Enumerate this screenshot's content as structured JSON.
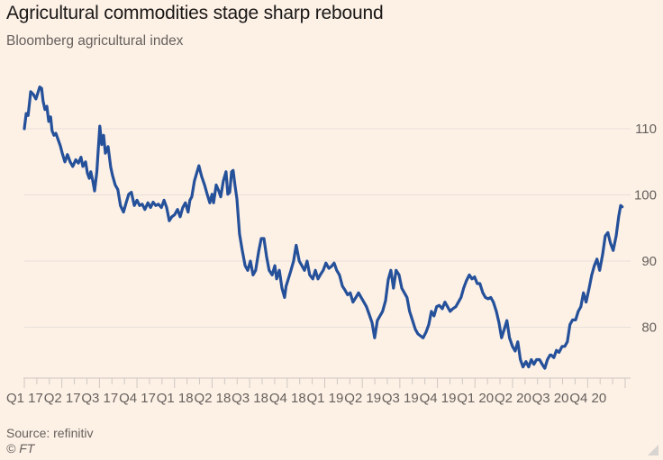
{
  "header": {
    "title": "Agricultural commodities stage sharp rebound",
    "subtitle": "Bloomberg agricultural index"
  },
  "footer": {
    "source": "Source: refinitiv",
    "copyright": "© FT"
  },
  "colors": {
    "background": "#fdf1e6",
    "line": "#25509a",
    "grid": "#e9e0d8",
    "axis": "#cfc8c2",
    "text": "#66605c",
    "title": "#1a1817"
  },
  "chart_data": {
    "type": "line",
    "title": "Agricultural commodities stage sharp rebound",
    "subtitle": "Bloomberg agricultural index",
    "xlabel": "",
    "ylabel": "",
    "x_unit": "quarters since start of Q1 2017",
    "x_range": [
      0,
      16
    ],
    "ylim": [
      73,
      119
    ],
    "yticks": [
      80,
      90,
      100,
      110
    ],
    "ytick_position": "right",
    "grid": true,
    "legend": "none",
    "categories": [
      "Q1 17",
      "Q2 17",
      "Q3 17",
      "Q4 17",
      "Q1 18",
      "Q2 18",
      "Q3 18",
      "Q4 18",
      "Q1 19",
      "Q2 19",
      "Q3 19",
      "Q4 19",
      "Q1 20",
      "Q2 20",
      "Q3 20",
      "Q4 20"
    ],
    "series": [
      {
        "name": "Bloomberg agricultural index",
        "x": [
          0.0,
          0.05,
          0.1,
          0.17,
          0.24,
          0.31,
          0.36,
          0.41,
          0.46,
          0.5,
          0.55,
          0.6,
          0.65,
          0.7,
          0.74,
          0.79,
          0.84,
          0.96,
          1.01,
          1.08,
          1.15,
          1.22,
          1.29,
          1.37,
          1.44,
          1.51,
          1.56,
          1.63,
          1.68,
          1.73,
          1.77,
          1.82,
          1.87,
          1.93,
          1.97,
          2.01,
          2.06,
          2.11,
          2.16,
          2.23,
          2.3,
          2.35,
          2.42,
          2.49,
          2.56,
          2.64,
          2.71,
          2.78,
          2.85,
          2.93,
          3.0,
          3.07,
          3.14,
          3.21,
          3.29,
          3.36,
          3.43,
          3.5,
          3.57,
          3.65,
          3.72,
          3.79,
          3.86,
          3.93,
          4.0,
          4.08,
          4.15,
          4.22,
          4.29,
          4.36,
          4.41,
          4.46,
          4.53,
          4.6,
          4.65,
          4.72,
          4.8,
          4.87,
          4.94,
          5.0,
          5.04,
          5.11,
          5.18,
          5.23,
          5.3,
          5.37,
          5.42,
          5.47,
          5.52,
          5.56,
          5.61,
          5.66,
          5.73,
          5.8,
          5.88,
          5.95,
          6.02,
          6.09,
          6.16,
          6.24,
          6.31,
          6.38,
          6.45,
          6.52,
          6.6,
          6.67,
          6.72,
          6.79,
          6.86,
          6.93,
          6.97,
          7.03,
          7.1,
          7.17,
          7.24,
          7.32,
          7.39,
          7.46,
          7.53,
          7.6,
          7.68,
          7.75,
          7.82,
          7.89,
          7.96,
          8.03,
          8.11,
          8.18,
          8.25,
          8.32,
          8.39,
          8.47,
          8.54,
          8.61,
          8.68,
          8.75,
          8.83,
          8.9,
          8.97,
          9.04,
          9.11,
          9.18,
          9.26,
          9.33,
          9.4,
          9.47,
          9.54,
          9.62,
          9.69,
          9.76,
          9.83,
          9.9,
          9.98,
          10.05,
          10.12,
          10.19,
          10.26,
          10.34,
          10.41,
          10.48,
          10.55,
          10.62,
          10.7,
          10.77,
          10.84,
          10.91,
          10.98,
          11.05,
          11.13,
          11.2,
          11.27,
          11.34,
          11.41,
          11.49,
          11.56,
          11.63,
          11.7,
          11.77,
          11.85,
          11.92,
          11.99,
          12.06,
          12.13,
          12.21,
          12.28,
          12.35,
          12.42,
          12.49,
          12.57,
          12.64,
          12.71,
          12.78,
          12.85,
          12.92,
          13.0,
          13.07,
          13.14,
          13.21,
          13.28,
          13.36,
          13.43,
          13.5,
          13.57,
          13.64,
          13.72,
          13.79,
          13.86,
          13.93,
          14.0,
          14.03,
          14.1,
          14.17,
          14.24,
          14.32,
          14.39,
          14.46,
          14.53,
          14.6,
          14.68,
          14.75,
          14.82,
          14.89,
          14.96,
          15.04,
          15.11,
          15.18,
          15.25,
          15.32,
          15.4,
          15.47,
          15.54,
          15.61,
          15.68,
          15.76,
          15.83,
          15.88,
          15.92
        ],
        "values": [
          110.0,
          112.3,
          112.0,
          115.6,
          115.2,
          114.5,
          115.4,
          116.3,
          116.1,
          114.2,
          112.9,
          113.4,
          111.1,
          111.8,
          109.7,
          109.0,
          109.3,
          107.4,
          106.3,
          105.0,
          106.1,
          105.0,
          104.3,
          105.3,
          104.8,
          105.7,
          104.3,
          105.0,
          103.3,
          102.5,
          103.5,
          102.2,
          100.6,
          103.5,
          106.9,
          110.4,
          107.6,
          109.0,
          106.3,
          107.3,
          104.2,
          102.9,
          101.5,
          100.8,
          98.4,
          97.4,
          98.8,
          100.1,
          100.4,
          98.4,
          99.2,
          98.4,
          98.6,
          97.8,
          98.8,
          98.1,
          98.9,
          98.4,
          98.6,
          98.1,
          99.2,
          98.1,
          96.1,
          96.7,
          97.0,
          97.8,
          96.7,
          98.1,
          98.8,
          97.4,
          99.2,
          99.7,
          102.1,
          103.5,
          104.4,
          102.8,
          101.5,
          100.1,
          98.8,
          100.1,
          98.8,
          101.5,
          100.6,
          99.7,
          102.1,
          103.5,
          100.1,
          100.4,
          103.5,
          103.7,
          101.4,
          99.4,
          94.1,
          91.7,
          89.3,
          88.6,
          90.0,
          87.9,
          88.6,
          91.4,
          93.4,
          93.4,
          90.7,
          88.6,
          87.9,
          89.3,
          87.3,
          88.6,
          85.9,
          84.5,
          86.2,
          87.3,
          88.6,
          90.0,
          92.4,
          90.0,
          89.3,
          88.6,
          90.0,
          87.9,
          87.3,
          88.6,
          87.3,
          88.0,
          88.6,
          89.7,
          88.9,
          89.2,
          89.7,
          88.6,
          87.9,
          86.2,
          85.6,
          84.9,
          85.2,
          83.8,
          84.5,
          85.2,
          84.5,
          83.8,
          83.1,
          82.0,
          80.7,
          78.4,
          81.0,
          81.7,
          82.4,
          84.0,
          87.2,
          88.6,
          85.9,
          88.6,
          87.9,
          85.9,
          85.2,
          84.5,
          82.4,
          81.0,
          79.7,
          79.0,
          78.7,
          78.4,
          79.3,
          80.4,
          82.4,
          81.7,
          83.1,
          83.3,
          82.8,
          83.8,
          83.1,
          82.4,
          82.8,
          83.1,
          83.8,
          84.5,
          85.9,
          87.0,
          87.9,
          87.3,
          87.6,
          86.6,
          86.6,
          85.2,
          84.5,
          84.3,
          84.5,
          83.8,
          82.4,
          80.7,
          78.4,
          79.7,
          81.0,
          78.4,
          77.1,
          76.4,
          77.8,
          75.1,
          74.0,
          74.8,
          74.0,
          75.1,
          74.4,
          75.1,
          75.1,
          74.4,
          73.8,
          75.1,
          75.8,
          75.8,
          75.4,
          76.5,
          76.2,
          77.1,
          77.1,
          77.8,
          80.4,
          81.1,
          81.1,
          82.4,
          83.1,
          85.2,
          83.8,
          85.9,
          87.9,
          89.3,
          90.3,
          88.6,
          91.0,
          93.8,
          94.3,
          92.7,
          91.6,
          93.8,
          96.8,
          98.4,
          98.2
        ]
      }
    ]
  }
}
